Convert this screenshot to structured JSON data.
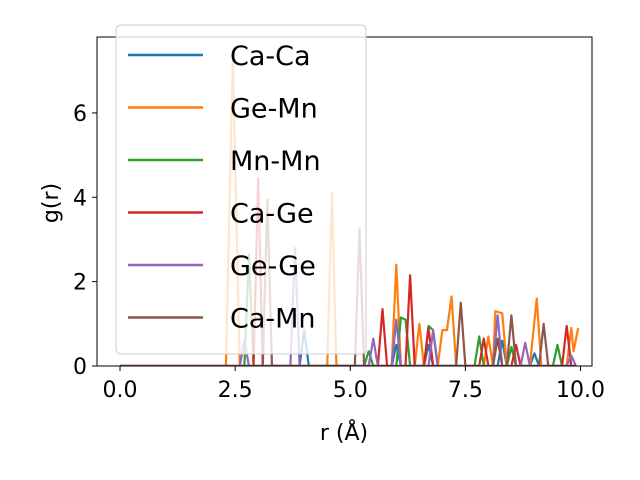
{
  "chart_data": {
    "type": "line",
    "xlabel": "r (Å)",
    "ylabel": "g(r)",
    "xlim": [
      -0.5,
      10.25
    ],
    "ylim": [
      0,
      7.8
    ],
    "xticks": [
      0.0,
      2.5,
      5.0,
      7.5,
      10.0
    ],
    "xtick_labels": [
      "0.0",
      "2.5",
      "5.0",
      "7.5",
      "10.0"
    ],
    "yticks": [
      0,
      2,
      4,
      6
    ],
    "ytick_labels": [
      "0",
      "2",
      "4",
      "6"
    ],
    "grid": false,
    "legend_position": "upper-left",
    "series": [
      {
        "name": "Ca-Ca",
        "color": "#1f77b4",
        "points": [
          [
            0,
            0
          ],
          [
            3.9,
            0
          ],
          [
            4.0,
            0.85
          ],
          [
            4.1,
            0
          ],
          [
            5.9,
            0
          ],
          [
            6.0,
            0.5
          ],
          [
            6.1,
            0
          ],
          [
            6.6,
            0
          ],
          [
            6.7,
            0.5
          ],
          [
            6.8,
            0
          ],
          [
            8.2,
            0
          ],
          [
            8.3,
            0.6
          ],
          [
            8.4,
            0
          ],
          [
            8.9,
            0
          ],
          [
            9.0,
            0.3
          ],
          [
            9.1,
            0
          ],
          [
            9.9,
            0
          ]
        ]
      },
      {
        "name": "Ge-Mn",
        "color": "#ff7f0e",
        "points": [
          [
            0,
            0
          ],
          [
            2.3,
            0
          ],
          [
            2.45,
            7.3
          ],
          [
            2.6,
            0
          ],
          [
            4.5,
            0
          ],
          [
            4.6,
            4.1
          ],
          [
            4.7,
            0
          ],
          [
            5.9,
            0
          ],
          [
            6.0,
            2.4
          ],
          [
            6.1,
            0
          ],
          [
            6.4,
            0
          ],
          [
            6.5,
            1.0
          ],
          [
            6.6,
            0
          ],
          [
            6.9,
            0
          ],
          [
            7.0,
            0.85
          ],
          [
            7.1,
            0.85
          ],
          [
            7.2,
            1.65
          ],
          [
            7.3,
            0
          ],
          [
            7.9,
            0
          ],
          [
            8.0,
            0.7
          ],
          [
            8.1,
            0
          ],
          [
            8.15,
            1.3
          ],
          [
            8.3,
            1.25
          ],
          [
            8.4,
            0
          ],
          [
            8.9,
            0
          ],
          [
            9.05,
            1.6
          ],
          [
            9.15,
            0
          ],
          [
            9.7,
            0
          ],
          [
            9.8,
            0.9
          ],
          [
            9.85,
            0.35
          ],
          [
            9.95,
            0.9
          ]
        ]
      },
      {
        "name": "Mn-Mn",
        "color": "#2ca02c",
        "points": [
          [
            0,
            0
          ],
          [
            2.7,
            0
          ],
          [
            2.8,
            2.65
          ],
          [
            2.9,
            0
          ],
          [
            5.3,
            0
          ],
          [
            5.4,
            0.35
          ],
          [
            5.5,
            0
          ],
          [
            6.0,
            0
          ],
          [
            6.1,
            1.15
          ],
          [
            6.2,
            1.1
          ],
          [
            6.3,
            0
          ],
          [
            6.6,
            0
          ],
          [
            6.7,
            0.95
          ],
          [
            6.8,
            0.85
          ],
          [
            6.9,
            0
          ],
          [
            7.7,
            0
          ],
          [
            7.8,
            0.7
          ],
          [
            7.9,
            0
          ],
          [
            8.4,
            0
          ],
          [
            8.5,
            0.45
          ],
          [
            8.6,
            0
          ],
          [
            9.4,
            0
          ],
          [
            9.5,
            0.5
          ],
          [
            9.6,
            0
          ],
          [
            9.9,
            0
          ]
        ]
      },
      {
        "name": "Ca-Ge",
        "color": "#d62728",
        "points": [
          [
            0,
            0
          ],
          [
            2.9,
            0
          ],
          [
            3.0,
            4.45
          ],
          [
            3.1,
            0
          ],
          [
            5.6,
            0
          ],
          [
            5.7,
            1.35
          ],
          [
            5.8,
            0
          ],
          [
            6.2,
            0
          ],
          [
            6.3,
            2.15
          ],
          [
            6.4,
            0
          ],
          [
            6.6,
            0
          ],
          [
            6.7,
            0.9
          ],
          [
            6.8,
            0
          ],
          [
            7.8,
            0
          ],
          [
            7.9,
            0.65
          ],
          [
            8.0,
            0
          ],
          [
            8.5,
            0
          ],
          [
            8.6,
            0.5
          ],
          [
            8.7,
            0
          ],
          [
            9.6,
            0
          ],
          [
            9.7,
            0.95
          ],
          [
            9.8,
            0
          ]
        ]
      },
      {
        "name": "Ge-Ge",
        "color": "#9467bd",
        "points": [
          [
            0,
            0
          ],
          [
            2.6,
            0
          ],
          [
            2.7,
            0.6
          ],
          [
            2.8,
            0
          ],
          [
            3.7,
            0
          ],
          [
            3.8,
            2.8
          ],
          [
            3.9,
            0
          ],
          [
            5.4,
            0
          ],
          [
            5.5,
            0.65
          ],
          [
            5.6,
            0
          ],
          [
            5.9,
            0
          ],
          [
            6.0,
            1.1
          ],
          [
            6.1,
            0
          ],
          [
            6.7,
            0
          ],
          [
            6.8,
            0.85
          ],
          [
            6.9,
            0
          ],
          [
            8.1,
            0
          ],
          [
            8.2,
            1.2
          ],
          [
            8.3,
            0
          ],
          [
            8.7,
            0
          ],
          [
            8.8,
            0.55
          ],
          [
            8.9,
            0
          ],
          [
            9.7,
            0
          ],
          [
            9.8,
            0.25
          ],
          [
            9.9,
            0
          ]
        ]
      },
      {
        "name": "Ca-Mn",
        "color": "#8c564b",
        "points": [
          [
            0,
            0
          ],
          [
            3.1,
            0
          ],
          [
            3.2,
            3.95
          ],
          [
            3.3,
            0
          ],
          [
            5.1,
            0
          ],
          [
            5.2,
            3.25
          ],
          [
            5.3,
            0
          ],
          [
            7.3,
            0
          ],
          [
            7.4,
            1.5
          ],
          [
            7.5,
            0
          ],
          [
            8.1,
            0
          ],
          [
            8.2,
            0.65
          ],
          [
            8.3,
            0
          ],
          [
            8.4,
            0
          ],
          [
            8.5,
            1.2
          ],
          [
            8.6,
            0
          ],
          [
            9.1,
            0
          ],
          [
            9.2,
            1.0
          ],
          [
            9.3,
            0
          ],
          [
            9.9,
            0
          ]
        ]
      }
    ]
  }
}
